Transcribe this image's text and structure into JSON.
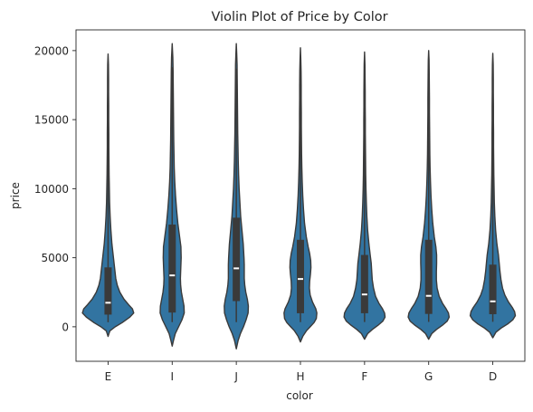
{
  "chart_data": {
    "type": "violin",
    "title": "Violin Plot of Price by Color",
    "xlabel": "color",
    "ylabel": "price",
    "ylim": [
      -2500,
      21500
    ],
    "yticks": [
      0,
      5000,
      10000,
      15000,
      20000
    ],
    "grid": false,
    "fill_color": "#3274a1",
    "line_color": "#3a3a3a",
    "categories": [
      "E",
      "I",
      "J",
      "H",
      "F",
      "G",
      "D"
    ],
    "violins": [
      {
        "name": "E",
        "min": 326,
        "q1": 880,
        "median": 1740,
        "q3": 4300,
        "max": 18730,
        "cut_low": -700,
        "cut_high": 19750,
        "profile": [
          [
            -700,
            0
          ],
          [
            -300,
            0.07
          ],
          [
            0,
            0.28
          ],
          [
            300,
            0.55
          ],
          [
            700,
            0.85
          ],
          [
            1000,
            1.0
          ],
          [
            1300,
            0.95
          ],
          [
            1600,
            0.8
          ],
          [
            2000,
            0.62
          ],
          [
            2500,
            0.46
          ],
          [
            3000,
            0.36
          ],
          [
            3500,
            0.3
          ],
          [
            4000,
            0.27
          ],
          [
            4500,
            0.24
          ],
          [
            5000,
            0.21
          ],
          [
            6000,
            0.15
          ],
          [
            7000,
            0.11
          ],
          [
            8000,
            0.08
          ],
          [
            9000,
            0.06
          ],
          [
            10000,
            0.05
          ],
          [
            11000,
            0.04
          ],
          [
            12000,
            0.035
          ],
          [
            13000,
            0.03
          ],
          [
            14000,
            0.03
          ],
          [
            15000,
            0.025
          ],
          [
            16000,
            0.025
          ],
          [
            17000,
            0.02
          ],
          [
            18000,
            0.02
          ],
          [
            19000,
            0.015
          ],
          [
            19750,
            0
          ]
        ]
      },
      {
        "name": "I",
        "min": 334,
        "q1": 1030,
        "median": 3720,
        "q3": 7400,
        "max": 18800,
        "cut_low": -1400,
        "cut_high": 20500,
        "profile": [
          [
            -1400,
            0
          ],
          [
            -1000,
            0.05
          ],
          [
            -500,
            0.12
          ],
          [
            0,
            0.25
          ],
          [
            500,
            0.38
          ],
          [
            1000,
            0.47
          ],
          [
            1500,
            0.46
          ],
          [
            2000,
            0.41
          ],
          [
            2500,
            0.36
          ],
          [
            3000,
            0.33
          ],
          [
            3500,
            0.32
          ],
          [
            4000,
            0.33
          ],
          [
            5000,
            0.35
          ],
          [
            5800,
            0.34
          ],
          [
            6500,
            0.29
          ],
          [
            7500,
            0.22
          ],
          [
            8500,
            0.17
          ],
          [
            9500,
            0.13
          ],
          [
            10500,
            0.1
          ],
          [
            11500,
            0.08
          ],
          [
            12500,
            0.07
          ],
          [
            13500,
            0.06
          ],
          [
            14500,
            0.055
          ],
          [
            15500,
            0.05
          ],
          [
            16500,
            0.045
          ],
          [
            17500,
            0.04
          ],
          [
            18500,
            0.035
          ],
          [
            19500,
            0.025
          ],
          [
            20500,
            0
          ]
        ]
      },
      {
        "name": "J",
        "min": 335,
        "q1": 1860,
        "median": 4230,
        "q3": 7900,
        "max": 18700,
        "cut_low": -1600,
        "cut_high": 20500,
        "profile": [
          [
            -1600,
            0
          ],
          [
            -1000,
            0.07
          ],
          [
            -500,
            0.16
          ],
          [
            0,
            0.28
          ],
          [
            500,
            0.38
          ],
          [
            1000,
            0.46
          ],
          [
            1500,
            0.47
          ],
          [
            2000,
            0.43
          ],
          [
            2500,
            0.37
          ],
          [
            3000,
            0.33
          ],
          [
            3500,
            0.31
          ],
          [
            4000,
            0.31
          ],
          [
            4500,
            0.31
          ],
          [
            5000,
            0.3
          ],
          [
            6000,
            0.27
          ],
          [
            7000,
            0.22
          ],
          [
            8000,
            0.17
          ],
          [
            9000,
            0.14
          ],
          [
            10000,
            0.11
          ],
          [
            11000,
            0.09
          ],
          [
            12000,
            0.075
          ],
          [
            13000,
            0.065
          ],
          [
            14000,
            0.055
          ],
          [
            15000,
            0.05
          ],
          [
            16000,
            0.045
          ],
          [
            17000,
            0.04
          ],
          [
            18000,
            0.035
          ],
          [
            19000,
            0.03
          ],
          [
            19800,
            0.015
          ],
          [
            20500,
            0
          ]
        ]
      },
      {
        "name": "H",
        "min": 337,
        "q1": 980,
        "median": 3460,
        "q3": 6300,
        "max": 18800,
        "cut_low": -1100,
        "cut_high": 20200,
        "profile": [
          [
            -1100,
            0
          ],
          [
            -700,
            0.09
          ],
          [
            -300,
            0.23
          ],
          [
            0,
            0.38
          ],
          [
            300,
            0.53
          ],
          [
            600,
            0.62
          ],
          [
            1000,
            0.64
          ],
          [
            1300,
            0.6
          ],
          [
            1800,
            0.47
          ],
          [
            2300,
            0.38
          ],
          [
            2800,
            0.35
          ],
          [
            3300,
            0.36
          ],
          [
            3800,
            0.39
          ],
          [
            4300,
            0.41
          ],
          [
            4800,
            0.4
          ],
          [
            5300,
            0.36
          ],
          [
            5800,
            0.3
          ],
          [
            6500,
            0.23
          ],
          [
            7500,
            0.16
          ],
          [
            8500,
            0.12
          ],
          [
            9500,
            0.09
          ],
          [
            10500,
            0.07
          ],
          [
            11500,
            0.055
          ],
          [
            12500,
            0.045
          ],
          [
            13500,
            0.04
          ],
          [
            14500,
            0.035
          ],
          [
            15500,
            0.035
          ],
          [
            16500,
            0.03
          ],
          [
            17500,
            0.03
          ],
          [
            18500,
            0.025
          ],
          [
            19300,
            0.015
          ],
          [
            20200,
            0
          ]
        ]
      },
      {
        "name": "F",
        "min": 342,
        "q1": 980,
        "median": 2340,
        "q3": 5200,
        "max": 18800,
        "cut_low": -900,
        "cut_high": 19900,
        "profile": [
          [
            -900,
            0
          ],
          [
            -500,
            0.12
          ],
          [
            -200,
            0.3
          ],
          [
            100,
            0.52
          ],
          [
            400,
            0.71
          ],
          [
            700,
            0.8
          ],
          [
            1000,
            0.78
          ],
          [
            1300,
            0.7
          ],
          [
            1700,
            0.56
          ],
          [
            2200,
            0.43
          ],
          [
            2800,
            0.35
          ],
          [
            3400,
            0.3
          ],
          [
            4000,
            0.28
          ],
          [
            4600,
            0.26
          ],
          [
            5200,
            0.22
          ],
          [
            6000,
            0.17
          ],
          [
            7000,
            0.12
          ],
          [
            8000,
            0.09
          ],
          [
            9000,
            0.07
          ],
          [
            10000,
            0.055
          ],
          [
            11000,
            0.045
          ],
          [
            12000,
            0.04
          ],
          [
            13000,
            0.035
          ],
          [
            14000,
            0.03
          ],
          [
            15000,
            0.03
          ],
          [
            16000,
            0.025
          ],
          [
            17000,
            0.025
          ],
          [
            18000,
            0.02
          ],
          [
            19000,
            0.015
          ],
          [
            19900,
            0
          ]
        ]
      },
      {
        "name": "G",
        "min": 354,
        "q1": 930,
        "median": 2240,
        "q3": 6300,
        "max": 18800,
        "cut_low": -900,
        "cut_high": 20000,
        "profile": [
          [
            -900,
            0
          ],
          [
            -500,
            0.12
          ],
          [
            -200,
            0.3
          ],
          [
            100,
            0.53
          ],
          [
            400,
            0.72
          ],
          [
            700,
            0.8
          ],
          [
            1000,
            0.77
          ],
          [
            1300,
            0.68
          ],
          [
            1700,
            0.54
          ],
          [
            2200,
            0.41
          ],
          [
            2800,
            0.33
          ],
          [
            3400,
            0.3
          ],
          [
            4000,
            0.3
          ],
          [
            4600,
            0.31
          ],
          [
            5200,
            0.31
          ],
          [
            5800,
            0.28
          ],
          [
            6500,
            0.22
          ],
          [
            7500,
            0.16
          ],
          [
            8500,
            0.12
          ],
          [
            9500,
            0.09
          ],
          [
            10500,
            0.07
          ],
          [
            11500,
            0.055
          ],
          [
            12500,
            0.045
          ],
          [
            13500,
            0.04
          ],
          [
            14500,
            0.035
          ],
          [
            15500,
            0.03
          ],
          [
            16500,
            0.03
          ],
          [
            17500,
            0.025
          ],
          [
            18500,
            0.02
          ],
          [
            19300,
            0.015
          ],
          [
            20000,
            0
          ]
        ]
      },
      {
        "name": "D",
        "min": 357,
        "q1": 910,
        "median": 1840,
        "q3": 4500,
        "max": 18700,
        "cut_low": -800,
        "cut_high": 19800,
        "profile": [
          [
            -800,
            0
          ],
          [
            -400,
            0.12
          ],
          [
            -100,
            0.32
          ],
          [
            200,
            0.58
          ],
          [
            500,
            0.78
          ],
          [
            800,
            0.88
          ],
          [
            1100,
            0.85
          ],
          [
            1400,
            0.76
          ],
          [
            1800,
            0.61
          ],
          [
            2300,
            0.47
          ],
          [
            2800,
            0.38
          ],
          [
            3400,
            0.32
          ],
          [
            4000,
            0.28
          ],
          [
            4600,
            0.25
          ],
          [
            5200,
            0.22
          ],
          [
            6000,
            0.16
          ],
          [
            7000,
            0.11
          ],
          [
            8000,
            0.08
          ],
          [
            9000,
            0.06
          ],
          [
            10000,
            0.05
          ],
          [
            11000,
            0.04
          ],
          [
            12000,
            0.035
          ],
          [
            13000,
            0.03
          ],
          [
            14000,
            0.03
          ],
          [
            15000,
            0.025
          ],
          [
            16000,
            0.025
          ],
          [
            17000,
            0.02
          ],
          [
            18000,
            0.02
          ],
          [
            19000,
            0.015
          ],
          [
            19800,
            0
          ]
        ]
      }
    ]
  }
}
